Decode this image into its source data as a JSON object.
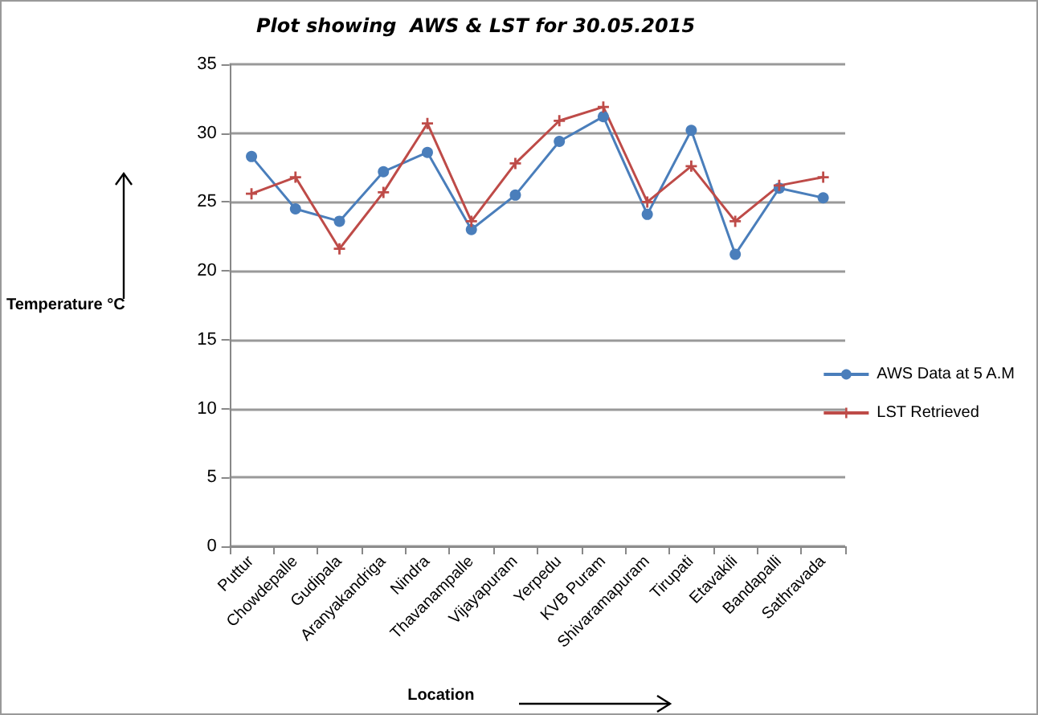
{
  "chart_data": {
    "type": "line",
    "title": "Plot showing  AWS & LST for 30.05.2015",
    "xlabel": "Location",
    "ylabel": "Temperature °C",
    "categories": [
      "Puttur",
      "Chowdepalle",
      "Gudipala",
      "Aranyakandriga",
      "Nindra",
      "Thavanampalle",
      "Vijayapuram",
      "Yerpedu",
      "KVB Puram",
      "Shivaramapuram",
      "Tirupati",
      "Etavakili",
      "Bandapalli",
      "Sathravada"
    ],
    "series": [
      {
        "name": "AWS Data at 5 A.M",
        "color": "#4a7ebb",
        "marker": "circle",
        "values": [
          28.3,
          24.5,
          23.6,
          27.2,
          28.6,
          23.0,
          25.5,
          29.4,
          31.2,
          24.1,
          30.2,
          21.2,
          26.0,
          25.3
        ]
      },
      {
        "name": "LST Retrieved",
        "color": "#be4b48",
        "marker": "cross",
        "values": [
          25.6,
          26.8,
          21.6,
          25.7,
          30.7,
          23.6,
          27.8,
          30.9,
          31.9,
          25.0,
          27.6,
          23.6,
          26.2,
          26.8
        ]
      }
    ],
    "ylim": [
      0,
      35
    ],
    "yticks": [
      0,
      5,
      10,
      15,
      20,
      25,
      30,
      35
    ],
    "grid": "y",
    "legend": "right",
    "line_style": "solid"
  }
}
